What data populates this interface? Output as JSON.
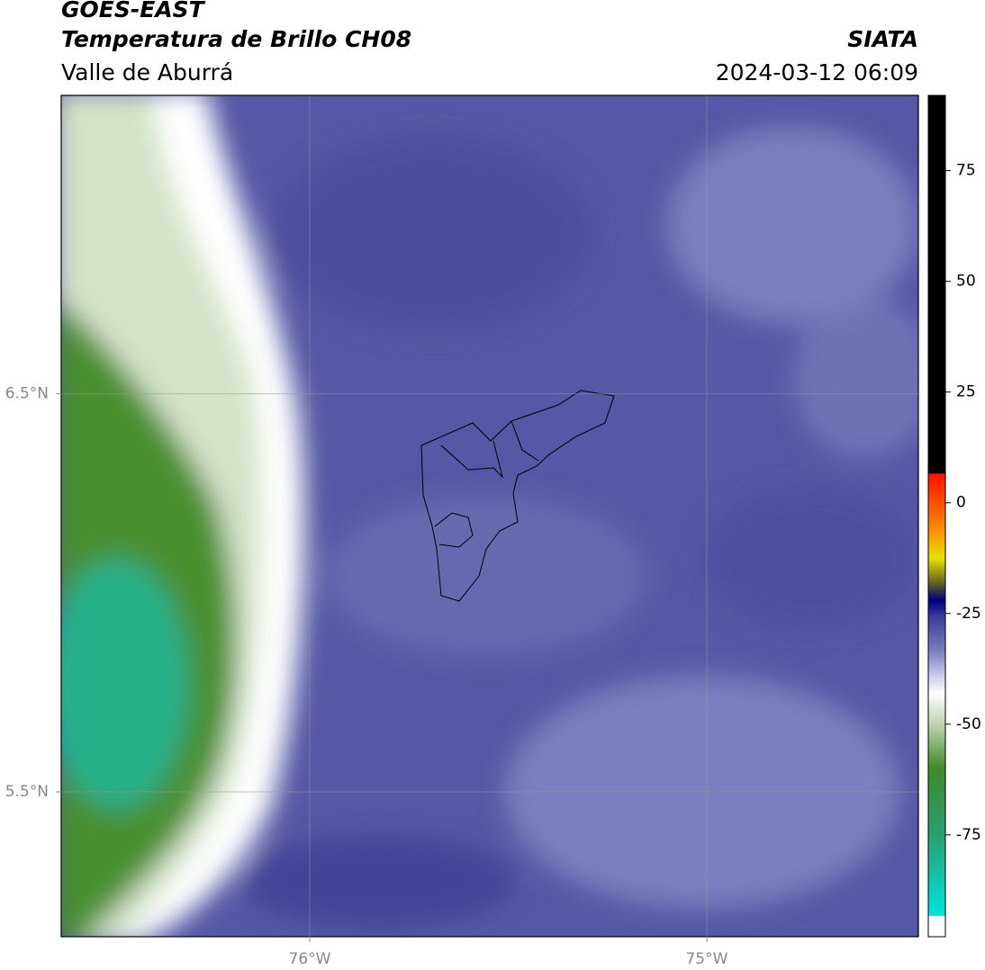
{
  "header": {
    "title": "GOES-EAST",
    "subtitle": "Temperatura de Brillo CH08",
    "region": "Valle de Aburrá",
    "source": "SIATA",
    "datetime": "2024-03-12 06:09"
  },
  "map": {
    "xlim": [
      -76.626,
      -74.467
    ],
    "ylim": [
      5.136,
      7.25
    ],
    "xticks": [
      {
        "value": -76,
        "label": "76°W"
      },
      {
        "value": -75,
        "label": "75°W"
      }
    ],
    "yticks": [
      {
        "value": 6.5,
        "label": "6.5°N"
      },
      {
        "value": 5.5,
        "label": "5.5°N"
      }
    ],
    "grid": true
  },
  "colorbar": {
    "lim": [
      -98,
      92
    ],
    "ticks": [
      75,
      50,
      25,
      0,
      -25,
      -50,
      -75
    ]
  }
}
